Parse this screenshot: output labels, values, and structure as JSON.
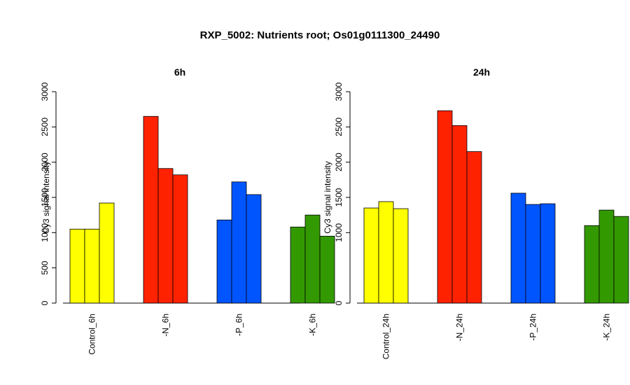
{
  "title": "RXP_5002: Nutrients root; Os01g0111300_24490",
  "colors": {
    "Control": "#ffff00",
    "N": "#ff2200",
    "P": "#0055ff",
    "K": "#339900"
  },
  "chart_data": [
    {
      "type": "bar",
      "title": "6h",
      "ylabel": "Cy3 signal intensity",
      "ylim": [
        0,
        3000
      ],
      "yticks": [
        0,
        500,
        1000,
        1500,
        2000,
        2500,
        3000
      ],
      "y_tick_labels": [
        "0",
        "500",
        "1000",
        "1500",
        "2000",
        "2500",
        "3000"
      ],
      "categories": [
        "Control_6h",
        "-N_6h",
        "-P_6h",
        "-K_6h"
      ],
      "group_colors": [
        "Control",
        "N",
        "P",
        "K"
      ],
      "values": [
        [
          1050,
          1050,
          1420
        ],
        [
          2650,
          1910,
          1820
        ],
        [
          1180,
          1720,
          1540
        ],
        [
          1080,
          1250,
          950
        ]
      ]
    },
    {
      "type": "bar",
      "title": "24h",
      "ylabel": "Cy3 signal intensity",
      "ylim": [
        0,
        3000
      ],
      "yticks": [
        0,
        1000,
        1500,
        2000,
        2500,
        3000
      ],
      "y_tick_labels": [
        "0",
        "1000",
        "1500",
        "2000",
        "2500",
        "3000"
      ],
      "categories": [
        "Control_24h",
        "-N_24h",
        "-P_24h",
        "-K_24h"
      ],
      "group_colors": [
        "Control",
        "N",
        "P",
        "K"
      ],
      "values": [
        [
          1350,
          1440,
          1340
        ],
        [
          2730,
          2520,
          2150
        ],
        [
          1560,
          1400,
          1410
        ],
        [
          1100,
          1320,
          1230
        ]
      ]
    }
  ]
}
